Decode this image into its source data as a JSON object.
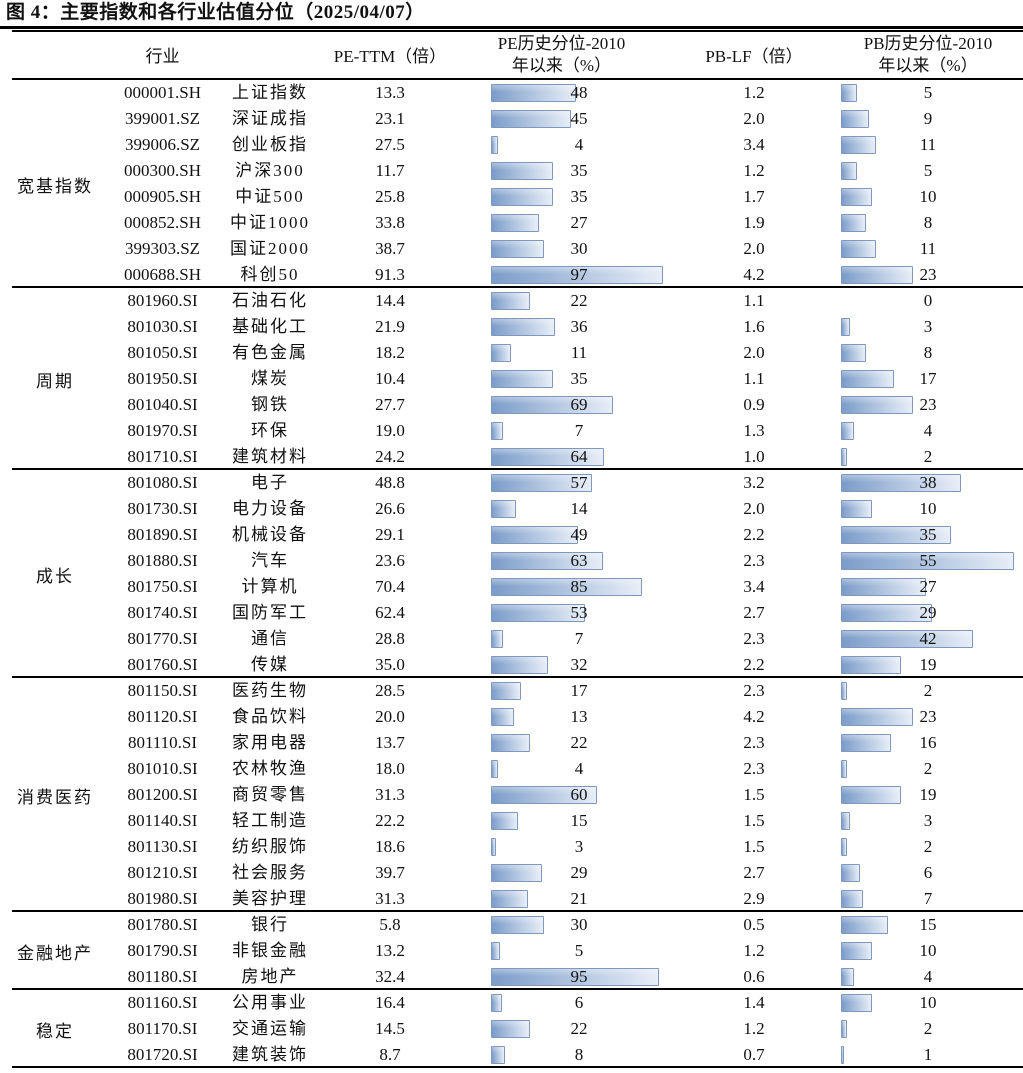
{
  "title": "图 4：主要指数和各行业估值分位（2025/04/07）",
  "chart_data": {
    "type": "table",
    "title": "主要指数和各行业估值分位（2025/04/07）",
    "columns": {
      "industry": "行业",
      "pe_ttm": "PE-TTM（倍）",
      "pe_pct_line1": "PE历史分位-2010",
      "pe_pct_line2": "年以来（%）",
      "pb_lf": "PB-LF（倍）",
      "pb_pct_line1": "PB历史分位-2010",
      "pb_pct_line2": "年以来（%）"
    },
    "bar_colors": {
      "fill_start": "#7b9cc9",
      "fill_end": "#e7eef7",
      "border": "#7f98bd"
    },
    "pe_pct_bar_max": 97,
    "pb_pct_bar_max": 55,
    "groups": [
      {
        "label": "宽基指数",
        "rows": [
          {
            "code": "000001.SH",
            "name": "上证指数",
            "pe": "13.3",
            "pe_pct": 48,
            "pb": "1.2",
            "pb_pct": 5
          },
          {
            "code": "399001.SZ",
            "name": "深证成指",
            "pe": "23.1",
            "pe_pct": 45,
            "pb": "2.0",
            "pb_pct": 9
          },
          {
            "code": "399006.SZ",
            "name": "创业板指",
            "pe": "27.5",
            "pe_pct": 4,
            "pb": "3.4",
            "pb_pct": 11
          },
          {
            "code": "000300.SH",
            "name": "沪深300",
            "pe": "11.7",
            "pe_pct": 35,
            "pb": "1.2",
            "pb_pct": 5
          },
          {
            "code": "000905.SH",
            "name": "中证500",
            "pe": "25.8",
            "pe_pct": 35,
            "pb": "1.7",
            "pb_pct": 10
          },
          {
            "code": "000852.SH",
            "name": "中证1000",
            "pe": "33.8",
            "pe_pct": 27,
            "pb": "1.9",
            "pb_pct": 8
          },
          {
            "code": "399303.SZ",
            "name": "国证2000",
            "pe": "38.7",
            "pe_pct": 30,
            "pb": "2.0",
            "pb_pct": 11
          },
          {
            "code": "000688.SH",
            "name": "科创50",
            "pe": "91.3",
            "pe_pct": 97,
            "pb": "4.2",
            "pb_pct": 23
          }
        ]
      },
      {
        "label": "周期",
        "rows": [
          {
            "code": "801960.SI",
            "name": "石油石化",
            "pe": "14.4",
            "pe_pct": 22,
            "pb": "1.1",
            "pb_pct": 0
          },
          {
            "code": "801030.SI",
            "name": "基础化工",
            "pe": "21.9",
            "pe_pct": 36,
            "pb": "1.6",
            "pb_pct": 3
          },
          {
            "code": "801050.SI",
            "name": "有色金属",
            "pe": "18.2",
            "pe_pct": 11,
            "pb": "2.0",
            "pb_pct": 8
          },
          {
            "code": "801950.SI",
            "name": "煤炭",
            "pe": "10.4",
            "pe_pct": 35,
            "pb": "1.1",
            "pb_pct": 17
          },
          {
            "code": "801040.SI",
            "name": "钢铁",
            "pe": "27.7",
            "pe_pct": 69,
            "pb": "0.9",
            "pb_pct": 23
          },
          {
            "code": "801970.SI",
            "name": "环保",
            "pe": "19.0",
            "pe_pct": 7,
            "pb": "1.3",
            "pb_pct": 4
          },
          {
            "code": "801710.SI",
            "name": "建筑材料",
            "pe": "24.2",
            "pe_pct": 64,
            "pb": "1.0",
            "pb_pct": 2
          }
        ]
      },
      {
        "label": "成长",
        "rows": [
          {
            "code": "801080.SI",
            "name": "电子",
            "pe": "48.8",
            "pe_pct": 57,
            "pb": "3.2",
            "pb_pct": 38
          },
          {
            "code": "801730.SI",
            "name": "电力设备",
            "pe": "26.6",
            "pe_pct": 14,
            "pb": "2.0",
            "pb_pct": 10
          },
          {
            "code": "801890.SI",
            "name": "机械设备",
            "pe": "29.1",
            "pe_pct": 49,
            "pb": "2.2",
            "pb_pct": 35
          },
          {
            "code": "801880.SI",
            "name": "汽车",
            "pe": "23.6",
            "pe_pct": 63,
            "pb": "2.3",
            "pb_pct": 55
          },
          {
            "code": "801750.SI",
            "name": "计算机",
            "pe": "70.4",
            "pe_pct": 85,
            "pb": "3.4",
            "pb_pct": 27
          },
          {
            "code": "801740.SI",
            "name": "国防军工",
            "pe": "62.4",
            "pe_pct": 53,
            "pb": "2.7",
            "pb_pct": 29
          },
          {
            "code": "801770.SI",
            "name": "通信",
            "pe": "28.8",
            "pe_pct": 7,
            "pb": "2.3",
            "pb_pct": 42
          },
          {
            "code": "801760.SI",
            "name": "传媒",
            "pe": "35.0",
            "pe_pct": 32,
            "pb": "2.2",
            "pb_pct": 19
          }
        ]
      },
      {
        "label": "消费医药",
        "rows": [
          {
            "code": "801150.SI",
            "name": "医药生物",
            "pe": "28.5",
            "pe_pct": 17,
            "pb": "2.3",
            "pb_pct": 2
          },
          {
            "code": "801120.SI",
            "name": "食品饮料",
            "pe": "20.0",
            "pe_pct": 13,
            "pb": "4.2",
            "pb_pct": 23
          },
          {
            "code": "801110.SI",
            "name": "家用电器",
            "pe": "13.7",
            "pe_pct": 22,
            "pb": "2.3",
            "pb_pct": 16
          },
          {
            "code": "801010.SI",
            "name": "农林牧渔",
            "pe": "18.0",
            "pe_pct": 4,
            "pb": "2.3",
            "pb_pct": 2
          },
          {
            "code": "801200.SI",
            "name": "商贸零售",
            "pe": "31.3",
            "pe_pct": 60,
            "pb": "1.5",
            "pb_pct": 19
          },
          {
            "code": "801140.SI",
            "name": "轻工制造",
            "pe": "22.2",
            "pe_pct": 15,
            "pb": "1.5",
            "pb_pct": 3
          },
          {
            "code": "801130.SI",
            "name": "纺织服饰",
            "pe": "18.6",
            "pe_pct": 3,
            "pb": "1.5",
            "pb_pct": 2
          },
          {
            "code": "801210.SI",
            "name": "社会服务",
            "pe": "39.7",
            "pe_pct": 29,
            "pb": "2.7",
            "pb_pct": 6
          },
          {
            "code": "801980.SI",
            "name": "美容护理",
            "pe": "31.3",
            "pe_pct": 21,
            "pb": "2.9",
            "pb_pct": 7
          }
        ]
      },
      {
        "label": "金融地产",
        "rows": [
          {
            "code": "801780.SI",
            "name": "银行",
            "pe": "5.8",
            "pe_pct": 30,
            "pb": "0.5",
            "pb_pct": 15
          },
          {
            "code": "801790.SI",
            "name": "非银金融",
            "pe": "13.2",
            "pe_pct": 5,
            "pb": "1.2",
            "pb_pct": 10
          },
          {
            "code": "801180.SI",
            "name": "房地产",
            "pe": "32.4",
            "pe_pct": 95,
            "pb": "0.6",
            "pb_pct": 4
          }
        ]
      },
      {
        "label": "稳定",
        "rows": [
          {
            "code": "801160.SI",
            "name": "公用事业",
            "pe": "16.4",
            "pe_pct": 6,
            "pb": "1.4",
            "pb_pct": 10
          },
          {
            "code": "801170.SI",
            "name": "交通运输",
            "pe": "14.5",
            "pe_pct": 22,
            "pb": "1.2",
            "pb_pct": 2
          },
          {
            "code": "801720.SI",
            "name": "建筑装饰",
            "pe": "8.7",
            "pe_pct": 8,
            "pb": "0.7",
            "pb_pct": 1
          }
        ]
      }
    ]
  }
}
